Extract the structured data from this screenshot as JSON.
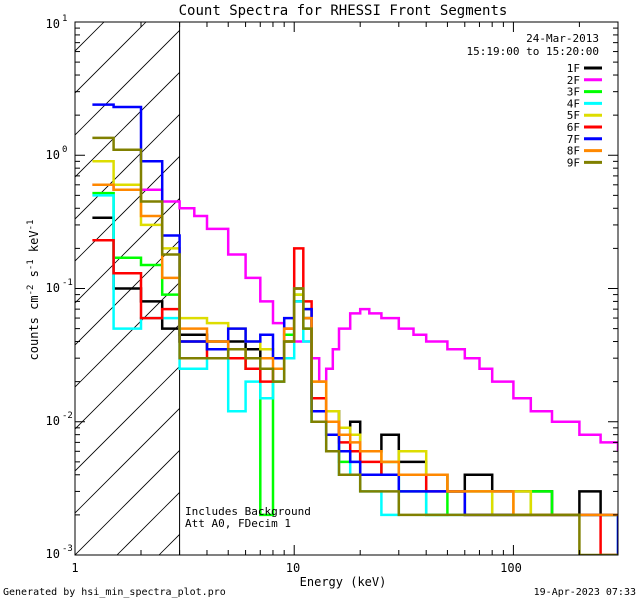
{
  "chart_data": {
    "type": "line",
    "title": "Count Spectra for RHESSI Front Segments",
    "xlabel": "Energy (keV)",
    "ylabel_parts": [
      "counts cm",
      "-2",
      " s",
      "-1",
      " keV",
      "-1"
    ],
    "xscale": "log",
    "yscale": "log",
    "xlim": [
      1,
      300
    ],
    "ylim": [
      0.001,
      10
    ],
    "x_tick_labels": [
      "1",
      "10",
      "100"
    ],
    "y_tick_labels": [
      {
        "base": "10",
        "exp": "-3"
      },
      {
        "base": "10",
        "exp": "-2"
      },
      {
        "base": "10",
        "exp": "-1"
      },
      {
        "base": "10",
        "exp": "0"
      },
      {
        "base": "10",
        "exp": "1"
      }
    ],
    "date_text": "24-Mar-2013",
    "time_range_text": "15:19:00 to 15:20:00",
    "annotations": [
      "Includes Background",
      "Att A0, FDecim 1"
    ],
    "hatched_region_xmax": 3,
    "legend_position": "top-right",
    "series": [
      {
        "name": "1F",
        "color": "#000000",
        "x": [
          1.2,
          1.5,
          2,
          2.5,
          3,
          4,
          5,
          6,
          7,
          8,
          9,
          10,
          11,
          12,
          14,
          16,
          18,
          20,
          25,
          30,
          40,
          50,
          60,
          80,
          100,
          120,
          150,
          200,
          250,
          300
        ],
        "values": [
          0.34,
          0.1,
          0.08,
          0.05,
          0.045,
          0.04,
          0.04,
          0.035,
          0.03,
          0.03,
          0.04,
          0.08,
          0.06,
          0.015,
          0.012,
          0.008,
          0.01,
          0.006,
          0.008,
          0.005,
          0.004,
          0.003,
          0.004,
          0.003,
          0.003,
          0.003,
          0.002,
          0.003,
          0.002,
          0.002
        ]
      },
      {
        "name": "2F",
        "color": "#ff00ff",
        "x": [
          1.2,
          1.5,
          2,
          2.5,
          3,
          3.5,
          4,
          5,
          6,
          7,
          8,
          9,
          10,
          11,
          12,
          13,
          14,
          15,
          16,
          18,
          20,
          22,
          25,
          30,
          35,
          40,
          50,
          60,
          70,
          80,
          100,
          120,
          150,
          200,
          250,
          300
        ],
        "values": [
          0.6,
          0.55,
          0.55,
          0.45,
          0.4,
          0.35,
          0.28,
          0.18,
          0.12,
          0.08,
          0.055,
          0.045,
          0.04,
          0.04,
          0.03,
          0.02,
          0.025,
          0.035,
          0.05,
          0.065,
          0.07,
          0.065,
          0.06,
          0.05,
          0.045,
          0.04,
          0.035,
          0.03,
          0.025,
          0.02,
          0.015,
          0.012,
          0.01,
          0.008,
          0.007,
          0.006
        ]
      },
      {
        "name": "3F",
        "color": "#00ff00",
        "x": [
          1.2,
          1.5,
          2,
          2.5,
          3,
          4,
          5,
          6,
          7,
          8,
          9,
          10,
          11,
          12,
          14,
          16,
          18,
          20,
          25,
          30,
          40,
          50,
          60,
          80,
          100,
          120,
          150,
          200,
          250,
          300
        ],
        "values": [
          0.52,
          0.17,
          0.15,
          0.09,
          0.04,
          0.035,
          0.03,
          0.025,
          0.002,
          0.02,
          0.045,
          0.09,
          0.05,
          0.01,
          0.008,
          0.005,
          0.006,
          0.004,
          0.005,
          0.003,
          0.002,
          0.003,
          0.002,
          0.002,
          0.002,
          0.003,
          0.002,
          0.002,
          0.002,
          0.002
        ]
      },
      {
        "name": "4F",
        "color": "#00ffff",
        "x": [
          1.2,
          1.5,
          2,
          2.5,
          3,
          4,
          5,
          6,
          7,
          8,
          9,
          10,
          11,
          12,
          14,
          16,
          18,
          20,
          25,
          30,
          40,
          50,
          60,
          80,
          100,
          120,
          150,
          200,
          250,
          300
        ],
        "values": [
          0.5,
          0.05,
          0.06,
          0.06,
          0.025,
          0.03,
          0.012,
          0.02,
          0.015,
          0.02,
          0.03,
          0.08,
          0.04,
          0.01,
          0.006,
          0.004,
          0.005,
          0.003,
          0.002,
          0.004,
          0.002,
          0.002,
          0.003,
          0.002,
          0.002,
          0.002,
          0.002,
          0.002,
          0.002,
          0.001
        ]
      },
      {
        "name": "5F",
        "color": "#dddd00",
        "x": [
          1.2,
          1.5,
          2,
          2.5,
          3,
          4,
          5,
          6,
          7,
          8,
          9,
          10,
          11,
          12,
          14,
          16,
          18,
          20,
          25,
          30,
          40,
          50,
          60,
          80,
          100,
          120,
          150,
          200,
          250,
          300
        ],
        "values": [
          0.9,
          0.6,
          0.3,
          0.2,
          0.06,
          0.055,
          0.05,
          0.04,
          0.035,
          0.03,
          0.04,
          0.09,
          0.07,
          0.02,
          0.012,
          0.009,
          0.008,
          0.006,
          0.005,
          0.006,
          0.004,
          0.003,
          0.003,
          0.002,
          0.003,
          0.002,
          0.002,
          0.002,
          0.002,
          0.002
        ]
      },
      {
        "name": "6F",
        "color": "#ff0000",
        "x": [
          1.2,
          1.5,
          2,
          2.5,
          3,
          4,
          5,
          6,
          7,
          8,
          9,
          10,
          11,
          12,
          14,
          16,
          18,
          20,
          25,
          30,
          40,
          50,
          60,
          80,
          100,
          120,
          150,
          200,
          250,
          300
        ],
        "values": [
          0.23,
          0.13,
          0.06,
          0.07,
          0.04,
          0.03,
          0.03,
          0.025,
          0.02,
          0.025,
          0.05,
          0.2,
          0.08,
          0.015,
          0.01,
          0.007,
          0.006,
          0.005,
          0.004,
          0.004,
          0.003,
          0.003,
          0.002,
          0.002,
          0.002,
          0.002,
          0.002,
          0.002,
          0.001,
          0.001
        ]
      },
      {
        "name": "7F",
        "color": "#0000ff",
        "x": [
          1.2,
          1.5,
          2,
          2.5,
          3,
          4,
          5,
          6,
          7,
          8,
          9,
          10,
          11,
          12,
          14,
          16,
          18,
          20,
          25,
          30,
          40,
          50,
          60,
          80,
          100,
          120,
          150,
          200,
          250,
          300
        ],
        "values": [
          2.4,
          2.3,
          0.9,
          0.25,
          0.04,
          0.035,
          0.05,
          0.04,
          0.045,
          0.03,
          0.06,
          0.1,
          0.07,
          0.012,
          0.008,
          0.006,
          0.005,
          0.004,
          0.004,
          0.003,
          0.003,
          0.003,
          0.002,
          0.002,
          0.002,
          0.002,
          0.002,
          0.002,
          0.002,
          0.001
        ]
      },
      {
        "name": "8F",
        "color": "#ff8800",
        "x": [
          1.2,
          1.5,
          2,
          2.5,
          3,
          4,
          5,
          6,
          7,
          8,
          9,
          10,
          11,
          12,
          14,
          16,
          18,
          20,
          25,
          30,
          40,
          50,
          60,
          80,
          100,
          120,
          150,
          200,
          250,
          300
        ],
        "values": [
          0.6,
          0.55,
          0.35,
          0.12,
          0.05,
          0.04,
          0.035,
          0.03,
          0.03,
          0.025,
          0.05,
          0.1,
          0.06,
          0.02,
          0.01,
          0.008,
          0.007,
          0.006,
          0.005,
          0.004,
          0.004,
          0.003,
          0.003,
          0.003,
          0.002,
          0.002,
          0.002,
          0.002,
          0.002,
          0.002
        ]
      },
      {
        "name": "9F",
        "color": "#808000",
        "x": [
          1.2,
          1.5,
          2,
          2.5,
          3,
          4,
          5,
          6,
          7,
          8,
          9,
          10,
          11,
          12,
          14,
          16,
          18,
          20,
          25,
          30,
          40,
          50,
          60,
          80,
          100,
          120,
          150,
          200,
          250,
          300
        ],
        "values": [
          1.35,
          1.1,
          0.45,
          0.18,
          0.03,
          0.03,
          0.035,
          0.03,
          0.025,
          0.02,
          0.04,
          0.1,
          0.05,
          0.01,
          0.006,
          0.004,
          0.004,
          0.003,
          0.003,
          0.002,
          0.002,
          0.002,
          0.002,
          0.002,
          0.002,
          0.002,
          0.002,
          0.001,
          0.001,
          0.001
        ]
      }
    ]
  },
  "footer": {
    "generated_by": "Generated by hsi_min_spectra_plot.pro",
    "timestamp": "19-Apr-2023 07:33"
  }
}
